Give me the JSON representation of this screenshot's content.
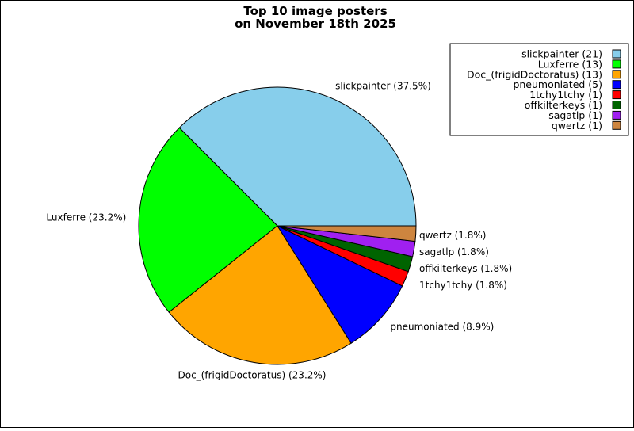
{
  "chart_data": {
    "type": "pie",
    "title_lines": [
      "Top 10 image posters",
      "on November 18th 2025"
    ],
    "slices": [
      {
        "name": "slickpainter",
        "value": 21,
        "color": "#87ceeb",
        "legend": "slickpainter (21)",
        "label": "slickpainter (37.5%)"
      },
      {
        "name": "Luxferre",
        "value": 13,
        "color": "#00ff00",
        "legend": "Luxferre (13)",
        "label": "Luxferre (23.2%)"
      },
      {
        "name": "Doc_(frigidDoctoratus)",
        "value": 13,
        "color": "#ffa500",
        "legend": "Doc_(frigidDoctoratus) (13)",
        "label": "Doc_(frigidDoctoratus) (23.2%)"
      },
      {
        "name": "pneumoniated",
        "value": 5,
        "color": "#0000ff",
        "legend": "pneumoniated (5)",
        "label": "pneumoniated (8.9%)"
      },
      {
        "name": "1tchy1tchy",
        "value": 1,
        "color": "#ff0000",
        "legend": "1tchy1tchy (1)",
        "label": "1tchy1tchy (1.8%)"
      },
      {
        "name": "offkilterkeys",
        "value": 1,
        "color": "#006400",
        "legend": "offkilterkeys (1)",
        "label": "offkilterkeys (1.8%)"
      },
      {
        "name": "sagatlp",
        "value": 1,
        "color": "#a020f0",
        "legend": "sagatlp (1)",
        "label": "sagatlp (1.8%)"
      },
      {
        "name": "qwertz",
        "value": 1,
        "color": "#cd853f",
        "legend": "qwertz (1)",
        "label": "qwertz (1.8%)"
      }
    ],
    "legend_position": "top-right"
  }
}
